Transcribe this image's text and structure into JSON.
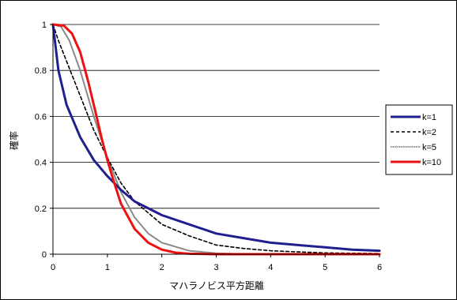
{
  "chart_data": {
    "type": "line",
    "title": "",
    "xlabel": "マハラノビス平方距離",
    "ylabel": "確率",
    "xlim": [
      0,
      6
    ],
    "ylim": [
      0,
      1
    ],
    "x_ticks": [
      "0",
      "1",
      "2",
      "3",
      "4",
      "5",
      "6"
    ],
    "y_ticks": [
      "0",
      "0.2",
      "0.4",
      "0.6",
      "0.8",
      "1"
    ],
    "grid": "horizontal",
    "legend_position": "right",
    "series": [
      {
        "name": "k=1",
        "color": "#1f1f8f",
        "style": "solid",
        "points": [
          [
            0,
            1
          ],
          [
            0.1,
            0.8
          ],
          [
            0.25,
            0.65
          ],
          [
            0.5,
            0.51
          ],
          [
            0.75,
            0.41
          ],
          [
            1,
            0.34
          ],
          [
            1.25,
            0.28
          ],
          [
            1.5,
            0.23
          ],
          [
            2,
            0.17
          ],
          [
            2.5,
            0.13
          ],
          [
            3,
            0.09
          ],
          [
            3.5,
            0.07
          ],
          [
            4,
            0.05
          ],
          [
            4.5,
            0.04
          ],
          [
            5,
            0.03
          ],
          [
            5.5,
            0.02
          ],
          [
            6,
            0.015
          ]
        ]
      },
      {
        "name": "k=2",
        "color": "#000000",
        "style": "dashed",
        "points": [
          [
            0,
            1
          ],
          [
            0.1,
            0.93
          ],
          [
            0.25,
            0.84
          ],
          [
            0.5,
            0.69
          ],
          [
            0.75,
            0.54
          ],
          [
            1,
            0.42
          ],
          [
            1.25,
            0.31
          ],
          [
            1.5,
            0.23
          ],
          [
            2,
            0.13
          ],
          [
            2.5,
            0.08
          ],
          [
            3,
            0.04
          ],
          [
            3.5,
            0.025
          ],
          [
            4,
            0.015
          ],
          [
            4.5,
            0.01
          ],
          [
            5,
            0.006
          ],
          [
            5.5,
            0.004
          ],
          [
            6,
            0.003
          ]
        ]
      },
      {
        "name": "k=5",
        "color": "#888888",
        "style": "dotted",
        "points": [
          [
            0,
            1
          ],
          [
            0.15,
            0.99
          ],
          [
            0.3,
            0.93
          ],
          [
            0.5,
            0.8
          ],
          [
            0.75,
            0.6
          ],
          [
            1,
            0.42
          ],
          [
            1.25,
            0.27
          ],
          [
            1.5,
            0.16
          ],
          [
            1.75,
            0.09
          ],
          [
            2,
            0.05
          ],
          [
            2.5,
            0.015
          ],
          [
            3,
            0.004
          ],
          [
            3.5,
            0.001
          ],
          [
            4,
            0
          ],
          [
            6,
            0
          ]
        ]
      },
      {
        "name": "k=10",
        "color": "#ee1111",
        "style": "solid",
        "points": [
          [
            0,
            1
          ],
          [
            0.2,
            0.995
          ],
          [
            0.35,
            0.96
          ],
          [
            0.5,
            0.88
          ],
          [
            0.65,
            0.75
          ],
          [
            0.8,
            0.6
          ],
          [
            0.9,
            0.5
          ],
          [
            1,
            0.41
          ],
          [
            1.1,
            0.33
          ],
          [
            1.25,
            0.22
          ],
          [
            1.5,
            0.11
          ],
          [
            1.75,
            0.05
          ],
          [
            2,
            0.02
          ],
          [
            2.25,
            0.007
          ],
          [
            2.5,
            0.002
          ],
          [
            3,
            0
          ],
          [
            6,
            0
          ]
        ]
      }
    ]
  }
}
